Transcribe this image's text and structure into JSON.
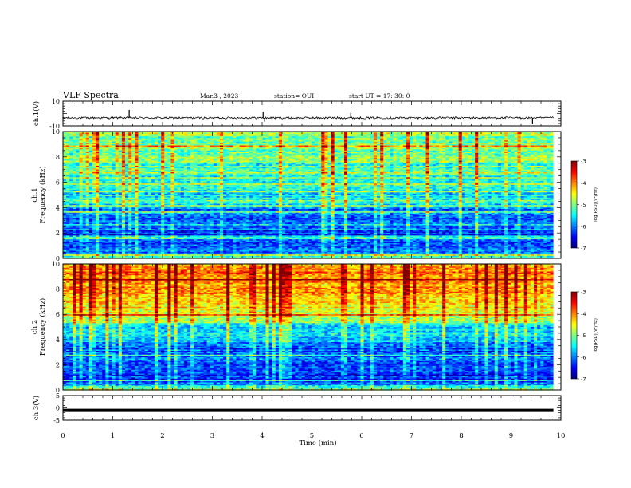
{
  "header": {
    "title": "VLF Spectra",
    "date": "Mar.3  , 2023",
    "station": "station= OUI",
    "start": "start  UT  =   17: 30: 0"
  },
  "colors": {
    "axes": "#000000",
    "trace": "#000000",
    "colormap": [
      "#00007f",
      "#0000ff",
      "#007fff",
      "#00ffff",
      "#7fff7f",
      "#ffff00",
      "#ff7f00",
      "#ff0000",
      "#7f0000"
    ]
  },
  "chart_data": [
    {
      "id": "ch1-waveform",
      "type": "line",
      "ylabel": "ch.1(V)",
      "ylim": [
        -10,
        10
      ],
      "yticks": [
        "10",
        "-10"
      ],
      "xlim": [
        0,
        10
      ],
      "baseline": -3.5,
      "spikes": [
        {
          "x": 1.33,
          "y": 3.0
        },
        {
          "x": 4.02,
          "y": 1.5
        },
        {
          "x": 4.05,
          "y": -6.5
        },
        {
          "x": 5.78,
          "y": 0.5
        },
        {
          "x": 9.43,
          "y": -8.5
        }
      ]
    },
    {
      "id": "ch1-spectrogram",
      "type": "heatmap",
      "ylabel": "ch.1\nFrequency (kHz)",
      "ylabel_lines": [
        "ch.1",
        "Frequency  (kHz)"
      ],
      "ylim": [
        0,
        10
      ],
      "yticks": [
        "0",
        "2",
        "4",
        "6",
        "8",
        "10"
      ],
      "xlim": [
        0,
        9.85
      ],
      "colorbar": {
        "label": "log(PSD)(V²/Hz)",
        "ticks": [
          "-3",
          "-4",
          "-5",
          "-6",
          "-7"
        ],
        "range": [
          -7,
          -3
        ]
      },
      "level_profile_khz": [
        0,
        0.5,
        1,
        2,
        3,
        4,
        4.5,
        5,
        6,
        7,
        8,
        9,
        10
      ],
      "level_profile_log_psd": [
        -4.8,
        -6.3,
        -6.2,
        -6.3,
        -6.1,
        -6.0,
        -5.2,
        -5.6,
        -5.4,
        -5.3,
        -5.0,
        -5.0,
        -4.9
      ]
    },
    {
      "id": "ch2-spectrogram",
      "type": "heatmap",
      "ylabel": "ch.2\nFrequency (kHz)",
      "ylabel_lines": [
        "ch.2",
        "Frequency  (kHz)"
      ],
      "ylim": [
        0,
        10
      ],
      "yticks": [
        "0",
        "2",
        "4",
        "6",
        "8",
        "10"
      ],
      "xlim": [
        0,
        9.85
      ],
      "colorbar": {
        "label": "log(PSD)(V²/Hz)",
        "ticks": [
          "-3",
          "-4",
          "-5",
          "-6",
          "-7"
        ],
        "range": [
          -7,
          -3
        ]
      },
      "level_profile_khz": [
        0,
        0.5,
        1,
        2,
        3,
        4,
        5,
        5.5,
        6,
        7,
        8,
        9,
        10
      ],
      "level_profile_log_psd": [
        -4.8,
        -6.2,
        -6.3,
        -6.2,
        -6.2,
        -5.8,
        -5.5,
        -5.0,
        -4.6,
        -4.3,
        -4.1,
        -4.0,
        -4.1
      ]
    },
    {
      "id": "ch3-waveform",
      "type": "line",
      "ylabel": "ch.3(V)",
      "ylim": [
        -5,
        5
      ],
      "yticks": [
        "5",
        "0",
        "-5"
      ],
      "xlim": [
        0,
        9.85
      ],
      "baseline": -1.0
    }
  ],
  "xaxis": {
    "label": "Time  (min)",
    "range": [
      0,
      10
    ],
    "ticks": [
      "0",
      "1",
      "2",
      "3",
      "4",
      "5",
      "6",
      "7",
      "8",
      "9",
      "10"
    ]
  }
}
